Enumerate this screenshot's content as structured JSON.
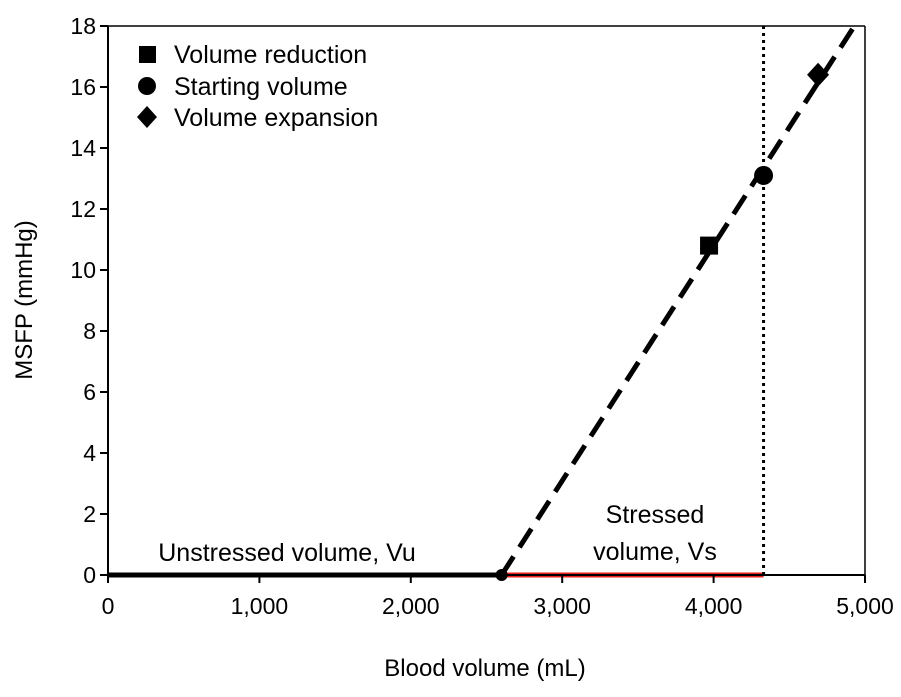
{
  "chart_data": {
    "type": "line",
    "xlabel": "Blood volume (mL)",
    "ylabel": "MSFP (mmHg)",
    "xlim": [
      0,
      5000
    ],
    "ylim": [
      0,
      18
    ],
    "x_ticks": [
      0,
      1000,
      2000,
      3000,
      4000,
      5000
    ],
    "x_tick_labels": [
      "0",
      "1,000",
      "2,000",
      "3,000",
      "4,000",
      "5,000"
    ],
    "y_ticks": [
      0,
      2,
      4,
      6,
      8,
      10,
      12,
      14,
      16,
      18
    ],
    "y_tick_labels": [
      "0",
      "2",
      "4",
      "6",
      "8",
      "10",
      "12",
      "14",
      "16",
      "18"
    ],
    "grid": false,
    "legend_position": "top-left",
    "series": [
      {
        "name": "Volume reduction",
        "marker": "square",
        "points": [
          {
            "x": 3970,
            "y": 10.8
          }
        ]
      },
      {
        "name": "Starting volume",
        "marker": "circle",
        "points": [
          {
            "x": 4330,
            "y": 13.1
          }
        ]
      },
      {
        "name": "Volume expansion",
        "marker": "diamond",
        "points": [
          {
            "x": 4690,
            "y": 16.4
          }
        ]
      }
    ],
    "lines": [
      {
        "style": "solid",
        "color": "#000000",
        "points": [
          {
            "x": 0,
            "y": 0
          },
          {
            "x": 2600,
            "y": 0
          }
        ]
      },
      {
        "style": "solid",
        "color": "#e8211b",
        "points": [
          {
            "x": 2600,
            "y": 0
          },
          {
            "x": 4330,
            "y": 0
          }
        ]
      },
      {
        "style": "dashed",
        "color": "#000000",
        "points": [
          {
            "x": 2600,
            "y": 0
          },
          {
            "x": 4930,
            "y": 18
          }
        ]
      },
      {
        "style": "dotted",
        "color": "#000000",
        "points": [
          {
            "x": 4330,
            "y": 0
          },
          {
            "x": 4330,
            "y": 18
          }
        ]
      }
    ],
    "origin_point": {
      "x": 2600,
      "y": 0
    },
    "annotations": {
      "unstressed": "Unstressed volume, Vu",
      "stressed_line1": "Stressed",
      "stressed_line2": "volume, Vs"
    },
    "colors": {
      "axis": "#000000",
      "stressed": "#e8211b"
    }
  }
}
